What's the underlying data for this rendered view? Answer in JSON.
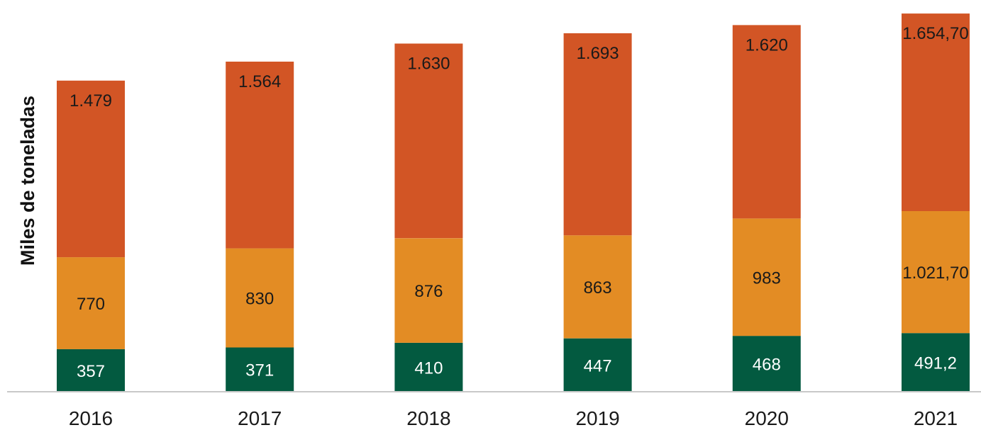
{
  "chart_data": {
    "type": "bar",
    "stacked": true,
    "title": "",
    "xlabel": "",
    "ylabel": "Miles de toneladas",
    "ylim": [
      0,
      3210
    ],
    "grid": false,
    "legend": "none",
    "categories": [
      "2016",
      "2017",
      "2018",
      "2019",
      "2020",
      "2021"
    ],
    "series": [
      {
        "name": "bottom",
        "color": "#035a40",
        "label_color": "#ffffff",
        "values": [
          357,
          371,
          410,
          447,
          468,
          491.2
        ],
        "labels": [
          "357",
          "371",
          "410",
          "447",
          "468",
          "491,2"
        ]
      },
      {
        "name": "middle",
        "color": "#e38c24",
        "label_color": "#1a1a1a",
        "values": [
          770,
          830,
          876,
          863,
          983,
          1021.7
        ],
        "labels": [
          "770",
          "830",
          "876",
          "863",
          "983",
          "1.021,70"
        ]
      },
      {
        "name": "top",
        "color": "#d25525",
        "label_color": "#1a1a1a",
        "values": [
          1479,
          1564,
          1630,
          1693,
          1620,
          1654.7
        ],
        "labels": [
          "1.479",
          "1.564",
          "1.630",
          "1.693",
          "1.620",
          "1.654,70"
        ]
      }
    ]
  }
}
